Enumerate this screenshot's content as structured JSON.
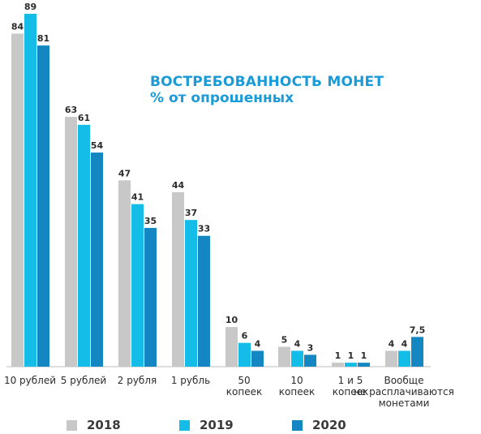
{
  "title": "ВОСТРЕБОВАННОСТЬ МОНЕТ",
  "subtitle": "% от опрошенных",
  "chart_data": {
    "type": "bar",
    "title": "ВОСТРЕБОВАННОСТЬ МОНЕТ",
    "subtitle": "% от опрошенных",
    "categories": [
      [
        "10 рублей"
      ],
      [
        "5 рублей"
      ],
      [
        "2 рубля"
      ],
      [
        "1 рубль"
      ],
      [
        "50",
        "копеек"
      ],
      [
        "10",
        "копеек"
      ],
      [
        "1 и 5",
        "копеек"
      ],
      [
        "Вообще",
        "не расплачиваются",
        "монетами"
      ]
    ],
    "series": [
      {
        "name": "2018",
        "values": [
          84,
          63,
          47,
          44,
          10,
          5,
          1,
          4
        ],
        "labels": [
          "84",
          "63",
          "47",
          "44",
          "10",
          "5",
          "1",
          "4"
        ],
        "color": "#c8c8c8"
      },
      {
        "name": "2019",
        "values": [
          89,
          61,
          41,
          37,
          6,
          4,
          1,
          4
        ],
        "labels": [
          "89",
          "61",
          "41",
          "37",
          "6",
          "4",
          "1",
          "4"
        ],
        "color": "#14bde8"
      },
      {
        "name": "2020",
        "values": [
          81,
          54,
          35,
          33,
          4,
          3,
          1,
          7.5
        ],
        "labels": [
          "81",
          "54",
          "35",
          "33",
          "4",
          "3",
          "1",
          "7,5"
        ],
        "color": "#1487c2"
      }
    ],
    "ylim": [
      0,
      89
    ],
    "grid": false,
    "legend_position": "bottom",
    "xlabel": "",
    "ylabel": ""
  }
}
